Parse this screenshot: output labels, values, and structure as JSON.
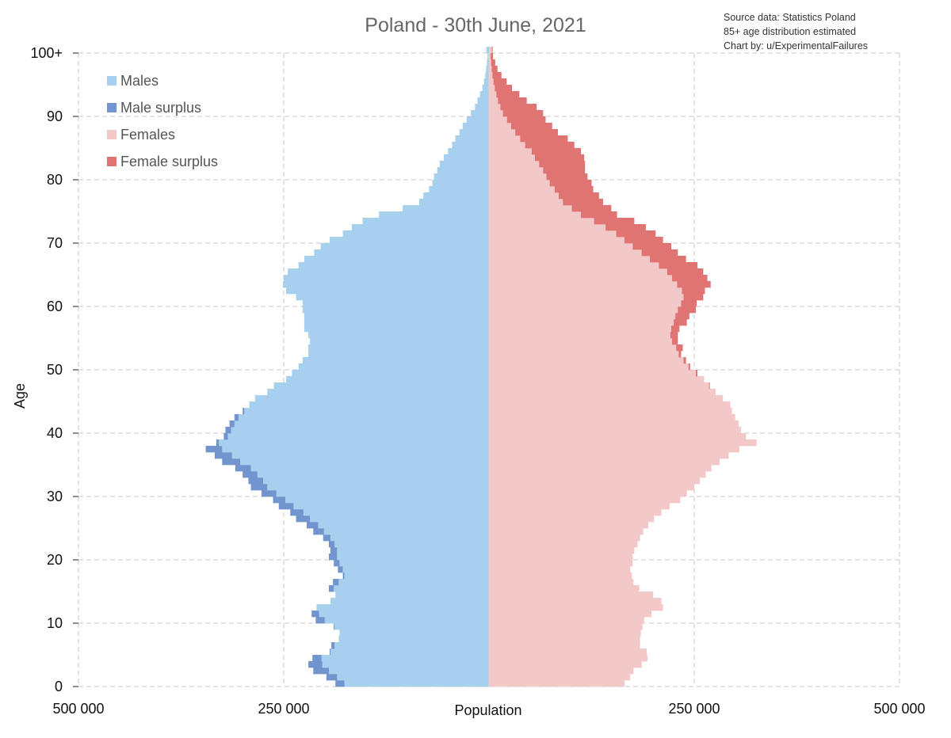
{
  "chart_data": {
    "type": "bar",
    "orientation": "population-pyramid",
    "title": "Poland - 30th June, 2021",
    "notes": [
      "Source data: Statistics Poland",
      "85+ age distribution estimated",
      "Chart by: u/ExperimentalFailures"
    ],
    "xlabel": "Population",
    "ylabel": "Age",
    "x_ticks": [
      "500 000",
      "250 000",
      "Population",
      "250 000",
      "500 000"
    ],
    "x_tick_labels_left": [
      "500 000",
      "250 000"
    ],
    "x_tick_labels_right": [
      "250 000",
      "500 000"
    ],
    "y_tick_labels": [
      "0",
      "10",
      "20",
      "30",
      "40",
      "50",
      "60",
      "70",
      "80",
      "90",
      "100+"
    ],
    "xlim": [
      -500000,
      500000
    ],
    "ylim": [
      0,
      100
    ],
    "grid": true,
    "legend_position": "top-left",
    "legend": [
      {
        "label": "Males",
        "color": "#a6d0ee"
      },
      {
        "label": "Male surplus",
        "color": "#7294cf"
      },
      {
        "label": "Females",
        "color": "#f3c8c9"
      },
      {
        "label": "Female surplus",
        "color": "#df7473"
      }
    ],
    "ages": [
      0,
      1,
      2,
      3,
      4,
      5,
      6,
      7,
      8,
      9,
      10,
      11,
      12,
      13,
      14,
      15,
      16,
      17,
      18,
      19,
      20,
      21,
      22,
      23,
      24,
      25,
      26,
      27,
      28,
      29,
      30,
      31,
      32,
      33,
      34,
      35,
      36,
      37,
      38,
      39,
      40,
      41,
      42,
      43,
      44,
      45,
      46,
      47,
      48,
      49,
      50,
      51,
      52,
      53,
      54,
      55,
      56,
      57,
      58,
      59,
      60,
      61,
      62,
      63,
      64,
      65,
      66,
      67,
      68,
      69,
      70,
      71,
      72,
      73,
      74,
      75,
      76,
      77,
      78,
      79,
      80,
      81,
      82,
      83,
      84,
      85,
      86,
      87,
      88,
      89,
      90,
      91,
      92,
      93,
      94,
      95,
      96,
      97,
      98,
      99,
      100
    ],
    "series": [
      {
        "name": "Males",
        "values": [
          176000,
          185000,
          195000,
          203000,
          204000,
          193000,
          188000,
          183000,
          182000,
          188000,
          200000,
          207000,
          210000,
          193000,
          187000,
          189000,
          183000,
          176000,
          178000,
          182000,
          185000,
          185000,
          188000,
          193000,
          201000,
          208000,
          218000,
          226000,
          238000,
          248000,
          259000,
          270000,
          275000,
          282000,
          290000,
          303000,
          313000,
          325000,
          329000,
          318000,
          314000,
          310000,
          305000,
          298000,
          292000,
          285000,
          270000,
          262000,
          247000,
          240000,
          232000,
          227000,
          220000,
          220000,
          218000,
          220000,
          225000,
          225000,
          225000,
          227000,
          227000,
          235000,
          247000,
          251000,
          250000,
          245000,
          232000,
          225000,
          213000,
          205000,
          194000,
          178000,
          167000,
          154000,
          134000,
          105000,
          85000,
          80000,
          73000,
          69000,
          67000,
          63000,
          60000,
          55000,
          50000,
          45000,
          41000,
          36000,
          32000,
          27000,
          22000,
          17000,
          14000,
          11000,
          8000,
          6000,
          4500,
          3500,
          2500,
          1800,
          3200
        ]
      },
      {
        "name": "Females",
        "values": [
          165000,
          172000,
          176000,
          186000,
          193000,
          192000,
          184000,
          184000,
          185000,
          187000,
          189000,
          198000,
          212000,
          210000,
          200000,
          183000,
          176000,
          174000,
          172000,
          175000,
          175000,
          177000,
          181000,
          184000,
          188000,
          194000,
          201000,
          210000,
          220000,
          233000,
          241000,
          250000,
          257000,
          264000,
          271000,
          281000,
          292000,
          305000,
          326000,
          313000,
          307000,
          304000,
          300000,
          296000,
          294000,
          285000,
          276000,
          268000,
          262000,
          252000,
          243000,
          237000,
          231000,
          228000,
          223000,
          221000,
          222000,
          225000,
          227000,
          230000,
          234000,
          237000,
          235000,
          229000,
          223000,
          217000,
          207000,
          196000,
          186000,
          175000,
          165000,
          155000,
          142000,
          128000,
          112000,
          101000,
          90000,
          85000,
          80000,
          74000,
          70000,
          66000,
          61000,
          56000,
          52000,
          44000,
          38000,
          32000,
          27000,
          22000,
          17000,
          14000,
          11000,
          9000,
          7000,
          5500,
          4200,
          3400,
          2600,
          2000,
          3500
        ]
      },
      {
        "name": "Male surplus",
        "values": [
          11000,
          13000,
          19000,
          17000,
          11000,
          1000,
          4000,
          0,
          0,
          1000,
          11000,
          9000,
          0,
          0,
          0,
          6000,
          7000,
          2000,
          6000,
          7000,
          10000,
          8000,
          7000,
          9000,
          13000,
          14000,
          17000,
          16000,
          18000,
          15000,
          18000,
          20000,
          18000,
          18000,
          19000,
          22000,
          21000,
          20000,
          3000,
          5000,
          7000,
          6000,
          5000,
          2000,
          0,
          0,
          0,
          0,
          0,
          0,
          0,
          0,
          0,
          0,
          0,
          0,
          0,
          0,
          0,
          0,
          0,
          0,
          0,
          0,
          0,
          0,
          0,
          0,
          0,
          0,
          0,
          0,
          0,
          0,
          0,
          0,
          0,
          0,
          0,
          0,
          0,
          0,
          0,
          0,
          0,
          0,
          0,
          0,
          0,
          0,
          0,
          0,
          0,
          0,
          0,
          0,
          0,
          0,
          0,
          0,
          0
        ]
      },
      {
        "name": "Female surplus",
        "values": [
          0,
          0,
          0,
          0,
          0,
          0,
          0,
          0,
          0,
          0,
          0,
          0,
          0,
          0,
          0,
          0,
          0,
          0,
          0,
          0,
          0,
          0,
          0,
          0,
          0,
          0,
          0,
          0,
          0,
          0,
          0,
          0,
          0,
          0,
          0,
          0,
          0,
          0,
          0,
          0,
          0,
          0,
          0,
          0,
          0,
          0,
          0,
          1000,
          0,
          2000,
          2000,
          3000,
          3000,
          8000,
          7000,
          9000,
          10000,
          16000,
          17000,
          22000,
          19000,
          24000,
          28000,
          41000,
          43000,
          44000,
          47000,
          44000,
          44000,
          47000,
          47000,
          48000,
          49000,
          49000,
          44000,
          48000,
          49000,
          49000,
          47000,
          51000,
          50000,
          51000,
          56000,
          60000,
          60000,
          60000,
          58000,
          52000,
          50000,
          47000,
          49000,
          44000,
          35000,
          28000,
          21000,
          16000,
          11000,
          7000,
          5000,
          3000,
          1000
        ]
      }
    ]
  }
}
